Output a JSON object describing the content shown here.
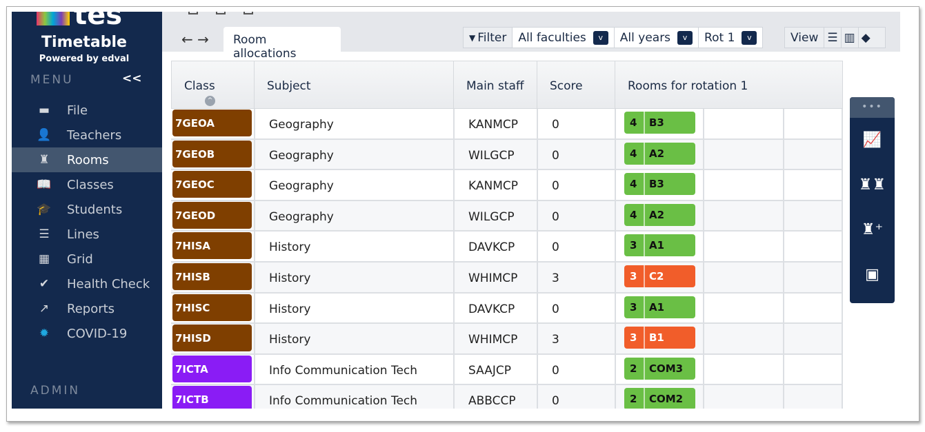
{
  "brand": {
    "logo_text": "tes",
    "app_name": "Timetable",
    "powered_by": "Powered by edval"
  },
  "sidebar": {
    "menu_heading": "MENU",
    "collapse_label": "<<",
    "admin_heading": "ADMIN",
    "items": [
      {
        "label": "File",
        "icon": "folder-icon",
        "glyph": "▬"
      },
      {
        "label": "Teachers",
        "icon": "person-icon",
        "glyph": "👤"
      },
      {
        "label": "Rooms",
        "icon": "chair-icon",
        "glyph": "♜",
        "active": true
      },
      {
        "label": "Classes",
        "icon": "book-icon",
        "glyph": "📖"
      },
      {
        "label": "Students",
        "icon": "graduation-cap-icon",
        "glyph": "🎓"
      },
      {
        "label": "Lines",
        "icon": "lines-icon",
        "glyph": "☰"
      },
      {
        "label": "Grid",
        "icon": "grid-icon",
        "glyph": "▦"
      },
      {
        "label": "Health Check",
        "icon": "apple-check-icon",
        "glyph": "✔"
      },
      {
        "label": "Reports",
        "icon": "trend-icon",
        "glyph": "↗"
      },
      {
        "label": "COVID-19",
        "icon": "virus-icon",
        "glyph": "✹"
      }
    ]
  },
  "toolbar": {
    "tab_label": "Room allocations",
    "back": "←",
    "forward": "→",
    "filter_label": "Filter",
    "faculty": "All faculties",
    "years": "All years",
    "rotation": "Rot 1",
    "view_label": "View",
    "dropdown_glyph": "v"
  },
  "table": {
    "headers": {
      "class": "Class",
      "subject": "Subject",
      "staff": "Main staff",
      "score": "Score",
      "rooms": "Rooms for rotation 1"
    },
    "rows": [
      {
        "class": "7GEOA",
        "subject": "Geography",
        "staff": "KANMCP",
        "score": "0",
        "periods": "4",
        "room": "B3",
        "class_color": "#7f3f00",
        "room_status": "ok"
      },
      {
        "class": "7GEOB",
        "subject": "Geography",
        "staff": "WILGCP",
        "score": "0",
        "periods": "4",
        "room": "A2",
        "class_color": "#7f3f00",
        "room_status": "ok"
      },
      {
        "class": "7GEOC",
        "subject": "Geography",
        "staff": "KANMCP",
        "score": "0",
        "periods": "4",
        "room": "B3",
        "class_color": "#7f3f00",
        "room_status": "ok"
      },
      {
        "class": "7GEOD",
        "subject": "Geography",
        "staff": "WILGCP",
        "score": "0",
        "periods": "4",
        "room": "A2",
        "class_color": "#7f3f00",
        "room_status": "ok"
      },
      {
        "class": "7HISA",
        "subject": "History",
        "staff": "DAVKCP",
        "score": "0",
        "periods": "3",
        "room": "A1",
        "class_color": "#7f3f00",
        "room_status": "ok"
      },
      {
        "class": "7HISB",
        "subject": "History",
        "staff": "WHIMCP",
        "score": "3",
        "periods": "3",
        "room": "C2",
        "class_color": "#7f3f00",
        "room_status": "conflict"
      },
      {
        "class": "7HISC",
        "subject": "History",
        "staff": "DAVKCP",
        "score": "0",
        "periods": "3",
        "room": "A1",
        "class_color": "#7f3f00",
        "room_status": "ok"
      },
      {
        "class": "7HISD",
        "subject": "History",
        "staff": "WHIMCP",
        "score": "3",
        "periods": "3",
        "room": "B1",
        "class_color": "#7f3f00",
        "room_status": "conflict"
      },
      {
        "class": "7ICTA",
        "subject": "Info Communication Tech",
        "staff": "SAAJCP",
        "score": "0",
        "periods": "2",
        "room": "COM3",
        "class_color": "#8a1cf5",
        "room_status": "ok"
      },
      {
        "class": "7ICTB",
        "subject": "Info Communication Tech",
        "staff": "ABBCCP",
        "score": "0",
        "periods": "2",
        "room": "COM2",
        "class_color": "#8a1cf5",
        "room_status": "ok"
      }
    ]
  },
  "colors": {
    "sidebar": "#13294d",
    "ok": "#6abf45",
    "conflict": "#f15d2a"
  },
  "right_panel": {
    "handle": "•••",
    "buttons": [
      "chart-icon",
      "swap-rooms-icon",
      "add-room-icon",
      "feedback-icon"
    ]
  }
}
